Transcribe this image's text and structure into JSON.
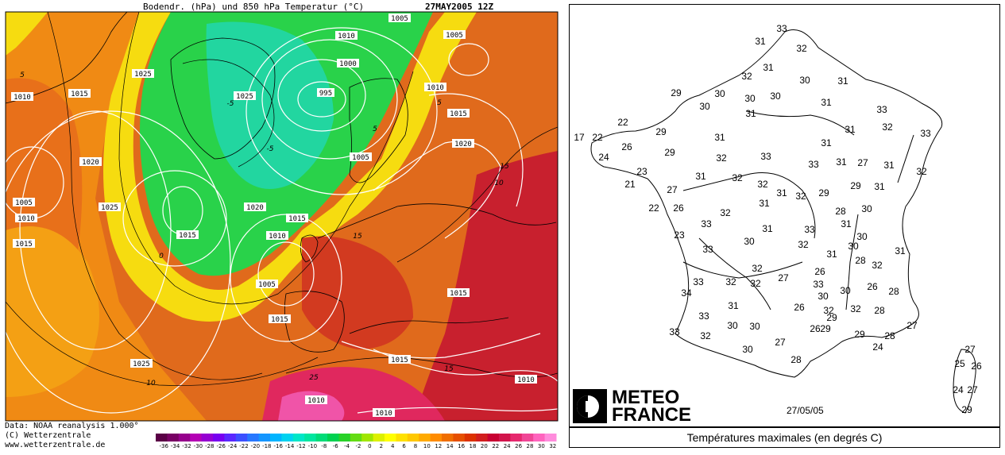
{
  "left_map": {
    "title": "Bodendr. (hPa) und 850 hPa Temperatur (°C)",
    "date": "27MAY2005 12Z",
    "credit_lines": [
      "Data: NOAA reanalysis 1.000°",
      "(C) Wetterzentrale",
      "www.wetterzentrale.de"
    ],
    "scale_labels": [
      "-36",
      "-34",
      "-32",
      "-30",
      "-28",
      "-26",
      "-24",
      "-22",
      "-20",
      "-18",
      "-16",
      "-14",
      "-12",
      "-10",
      "-8",
      "-6",
      "-4",
      "-2",
      "0",
      "2",
      "4",
      "6",
      "8",
      "10",
      "12",
      "14",
      "16",
      "18",
      "20",
      "22",
      "24",
      "26",
      "28",
      "30",
      "32"
    ],
    "scale_colors": [
      "#5a0046",
      "#780064",
      "#96008c",
      "#b400b4",
      "#9600d2",
      "#7800f0",
      "#5a28ff",
      "#3c50ff",
      "#2878ff",
      "#1496ff",
      "#00b4ff",
      "#00d2f0",
      "#00e6c8",
      "#00e6a0",
      "#00dc78",
      "#00d250",
      "#28d228",
      "#64dc14",
      "#a0e600",
      "#dcf000",
      "#ffff00",
      "#ffe100",
      "#ffc800",
      "#ffaa00",
      "#ff8c00",
      "#f06e00",
      "#e65000",
      "#dc3200",
      "#d21e1e",
      "#c80032",
      "#d2144b",
      "#e6286e",
      "#f04696",
      "#ff64be",
      "#ff8cdc"
    ],
    "isobar_labels": [
      {
        "text": "1005"
      },
      {
        "text": "1005"
      },
      {
        "text": "1010"
      },
      {
        "text": "1000"
      },
      {
        "text": "995"
      },
      {
        "text": "1025"
      },
      {
        "text": "1010"
      },
      {
        "text": "1015"
      },
      {
        "text": "1025"
      },
      {
        "text": "1010"
      },
      {
        "text": "1015"
      },
      {
        "text": "1020"
      },
      {
        "text": "1020"
      },
      {
        "text": "1005"
      },
      {
        "text": "1005"
      },
      {
        "text": "1010"
      },
      {
        "text": "1025"
      },
      {
        "text": "1015"
      },
      {
        "text": "1020"
      },
      {
        "text": "1015"
      },
      {
        "text": "1015"
      },
      {
        "text": "1010"
      },
      {
        "text": "1005"
      },
      {
        "text": "1015"
      },
      {
        "text": "1015"
      },
      {
        "text": "1025"
      },
      {
        "text": "1015"
      },
      {
        "text": "1010"
      },
      {
        "text": "1010"
      },
      {
        "text": "1010"
      }
    ],
    "isotherm_labels": [
      "5",
      "5",
      "0",
      "-5",
      "5",
      "10",
      "15",
      "15",
      "15",
      "10",
      "25",
      "-5"
    ]
  },
  "right_map": {
    "brand_line1": "METEO",
    "brand_line2": "FRANCE",
    "date": "27/05/05",
    "caption": "Températures maximales (en degrés C)",
    "temperatures": [
      "33",
      "31",
      "32",
      "31",
      "32",
      "30",
      "31",
      "29",
      "30",
      "30",
      "30",
      "30",
      "31",
      "33",
      "31",
      "32",
      "33",
      "22",
      "29",
      "17",
      "22",
      "26",
      "29",
      "31",
      "31",
      "24",
      "32",
      "33",
      "31",
      "27",
      "31",
      "31",
      "32",
      "23",
      "31",
      "32",
      "33",
      "32",
      "31",
      "29",
      "29",
      "31",
      "21",
      "27",
      "32",
      "31",
      "22",
      "26",
      "33",
      "28",
      "30",
      "23",
      "32",
      "31",
      "33",
      "31",
      "33",
      "30",
      "30",
      "32",
      "31",
      "30",
      "28",
      "32",
      "31",
      "32",
      "32",
      "32",
      "27",
      "26",
      "30",
      "26",
      "28",
      "33",
      "34",
      "33",
      "26",
      "28",
      "33",
      "31",
      "32",
      "29",
      "32",
      "30",
      "30",
      "29",
      "27",
      "28",
      "30",
      "29",
      "24",
      "33",
      "32",
      "26",
      "27",
      "30",
      "28",
      "27",
      "25",
      "26",
      "24",
      "27",
      "29"
    ]
  }
}
